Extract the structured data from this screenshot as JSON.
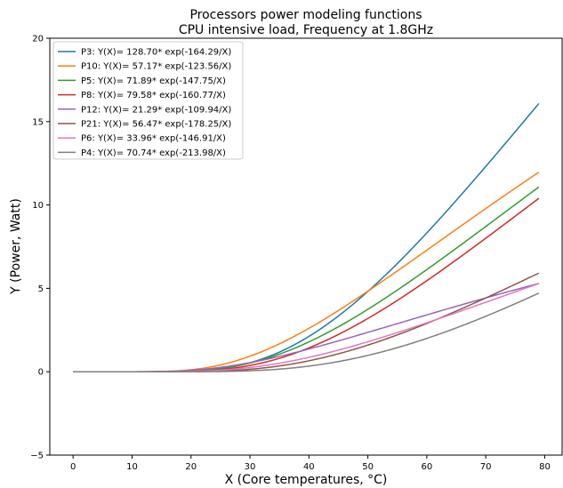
{
  "chart_data": {
    "type": "line",
    "title": "Processors power modeling functions",
    "subtitle": "CPU intensive load, Frequency at 1.8GHz",
    "xlabel": "X (Core temperatures, °C)",
    "ylabel": "Y (Power, Watt)",
    "xlim": [
      -3.95,
      82.95
    ],
    "ylim": [
      -5,
      20
    ],
    "xticks": [
      0,
      10,
      20,
      30,
      40,
      50,
      60,
      70,
      80
    ],
    "yticks": [
      -5,
      0,
      5,
      10,
      15,
      20
    ],
    "x_range": [
      0,
      79
    ],
    "grid": false,
    "legend_position": "top-left",
    "series": [
      {
        "name": "P3: Y(X)= 128.70* exp(-164.29/X)",
        "a": 128.7,
        "b": 164.29,
        "color": "#1f77b4"
      },
      {
        "name": "P10: Y(X)= 57.17* exp(-123.56/X)",
        "a": 57.17,
        "b": 123.56,
        "color": "#ff7f0e"
      },
      {
        "name": "P5: Y(X)= 71.89* exp(-147.75/X)",
        "a": 71.89,
        "b": 147.75,
        "color": "#2ca02c"
      },
      {
        "name": "P8: Y(X)= 79.58* exp(-160.77/X)",
        "a": 79.58,
        "b": 160.77,
        "color": "#d62728"
      },
      {
        "name": "P12: Y(X)= 21.29* exp(-109.94/X)",
        "a": 21.29,
        "b": 109.94,
        "color": "#9467bd"
      },
      {
        "name": "P21: Y(X)= 56.47* exp(-178.25/X)",
        "a": 56.47,
        "b": 178.25,
        "color": "#8c564b"
      },
      {
        "name": "P6: Y(X)= 33.96* exp(-146.91/X)",
        "a": 33.96,
        "b": 146.91,
        "color": "#e377c2"
      },
      {
        "name": "P4: Y(X)= 70.74* exp(-213.98/X)",
        "a": 70.74,
        "b": 213.98,
        "color": "#7f7f7f"
      }
    ]
  }
}
